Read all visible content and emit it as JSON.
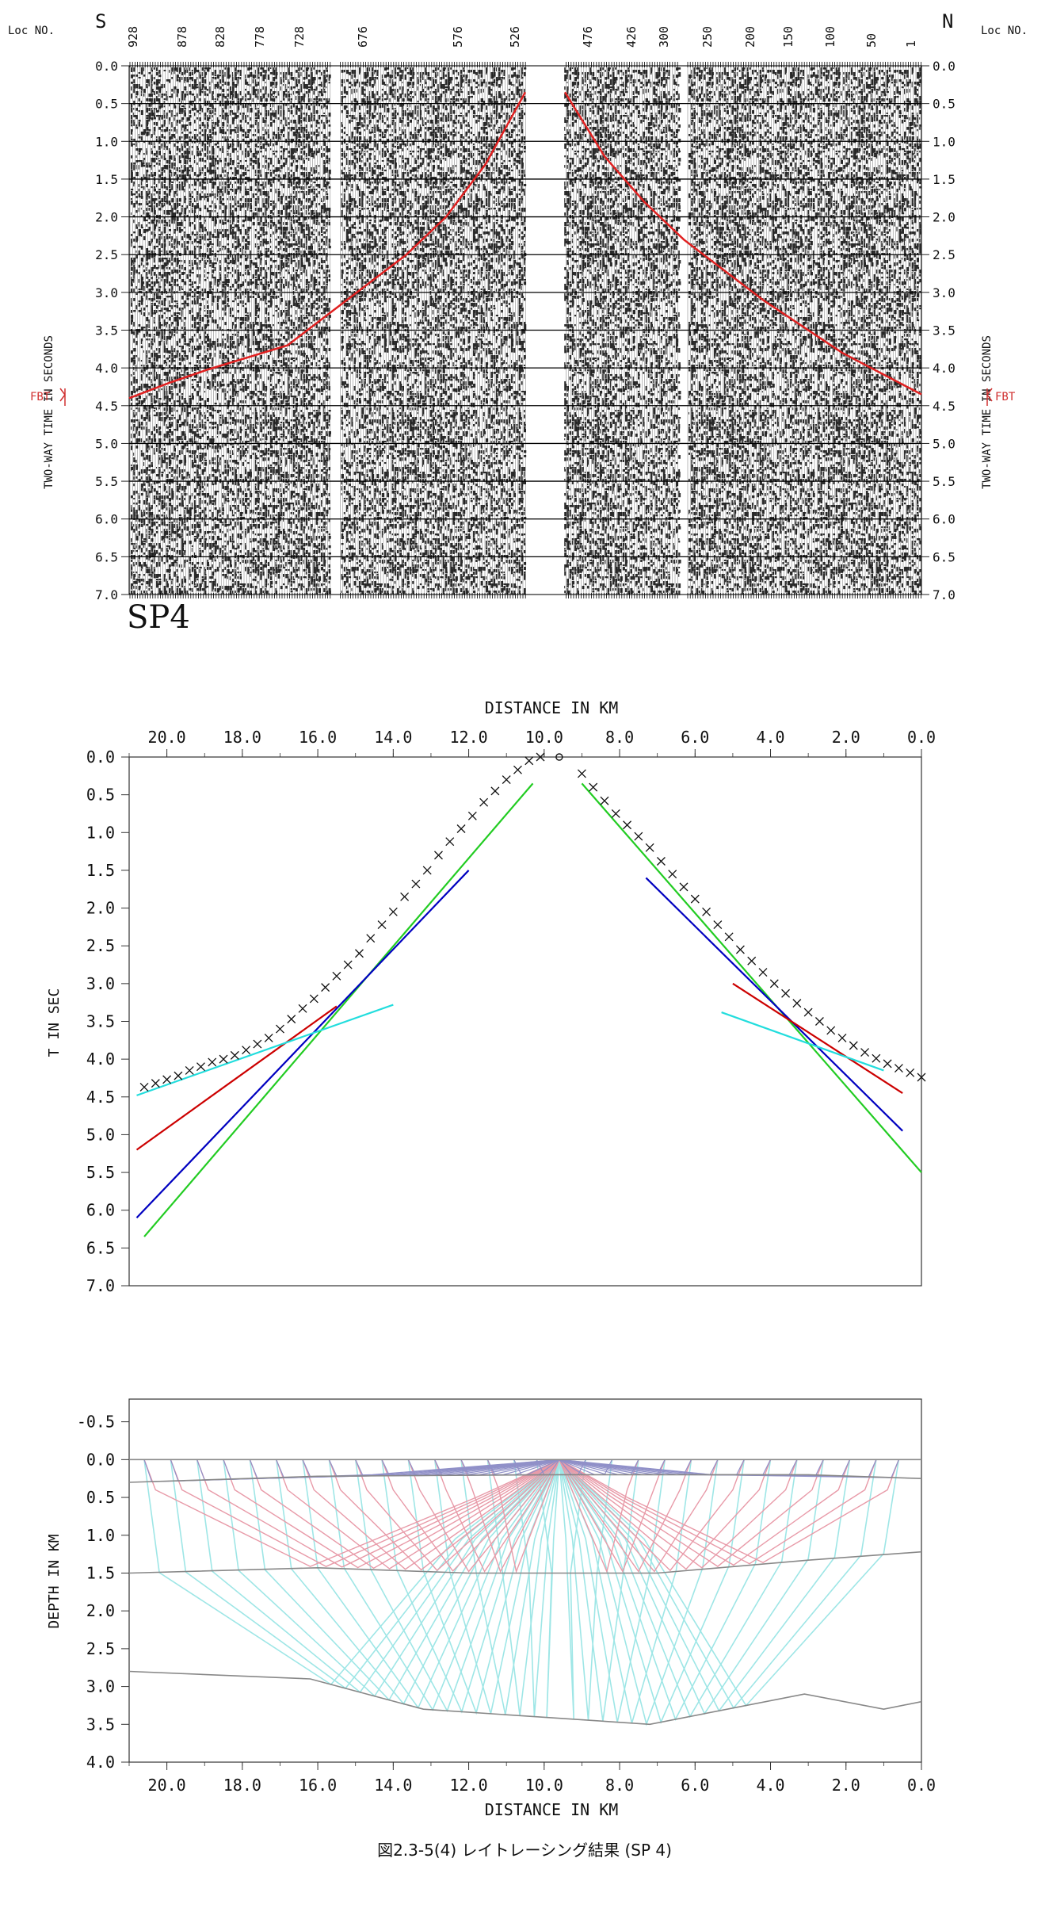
{
  "caption": "図2.3-5(4) レイトレーシング結果 (SP 4)",
  "colors": {
    "pick_line": "#e02020",
    "trace_ink": "#000000",
    "green": "#22cc22",
    "blue": "#0000c0",
    "red": "#cc0000",
    "cyan": "#22dddd",
    "ray_red": "#e89aa8",
    "ray_cyan": "#9ee6e6",
    "ray_purple": "#9090c8",
    "boundary": "#888888",
    "axis": "#333333"
  },
  "chart_data": [
    {
      "type": "seismic_record",
      "shot_label": "SP4",
      "left_direction": "S",
      "right_direction": "N",
      "loc_label_left": "Loc NO.",
      "loc_label_right": "Loc NO.",
      "loc_ticks": [
        "928",
        "878",
        "828",
        "778",
        "728",
        "676",
        "576",
        "526",
        "476",
        "426",
        "300",
        "250",
        "200",
        "150",
        "100",
        "50",
        "1"
      ],
      "ylabel_left": "TWO-WAY TIME IN SECONDS",
      "ylabel_right": "TWO-WAY TIME IN SECONDS",
      "marker_left": "FBT",
      "marker_right": "FBT",
      "y_ticks": [
        "0.0",
        "0.5",
        "1.0",
        "1.5",
        "2.0",
        "2.5",
        "3.0",
        "3.5",
        "4.0",
        "4.5",
        "5.0",
        "5.5",
        "6.0",
        "6.5",
        "7.0"
      ],
      "ylim": [
        0,
        7
      ],
      "first_break_pick": {
        "x": [
          0,
          0.05,
          0.1,
          0.2,
          0.25,
          0.3,
          0.35,
          0.4,
          0.45,
          0.5,
          0.52,
          0.55,
          0.6,
          0.65,
          0.7,
          0.8,
          0.9,
          1.0
        ],
        "y": [
          4.4,
          4.2,
          4.02,
          3.7,
          3.3,
          2.9,
          2.5,
          2.0,
          1.3,
          0.35,
          0.0,
          0.35,
          1.2,
          1.8,
          2.3,
          3.1,
          3.8,
          4.35
        ]
      }
    },
    {
      "type": "scatter",
      "xlabel": "DISTANCE IN KM",
      "ylabel": "T IN SEC",
      "xlim": [
        21,
        0
      ],
      "ylim": [
        7,
        0
      ],
      "x_ticks": [
        "20.0",
        "18.0",
        "16.0",
        "14.0",
        "12.0",
        "10.0",
        "8.0",
        "6.0",
        "4.0",
        "2.0",
        "0.0"
      ],
      "y_ticks": [
        "0.0",
        "0.5",
        "1.0",
        "1.5",
        "2.0",
        "2.5",
        "3.0",
        "3.5",
        "4.0",
        "4.5",
        "5.0",
        "5.5",
        "6.0",
        "6.5",
        "7.0"
      ],
      "shot_x": 9.6,
      "observed": {
        "x": [
          20.6,
          20.3,
          20.0,
          19.7,
          19.4,
          19.1,
          18.8,
          18.5,
          18.2,
          17.9,
          17.6,
          17.3,
          17.0,
          16.7,
          16.4,
          16.1,
          15.8,
          15.5,
          15.2,
          14.9,
          14.6,
          14.3,
          14.0,
          13.7,
          13.4,
          13.1,
          12.8,
          12.5,
          12.2,
          11.9,
          11.6,
          11.3,
          11.0,
          10.7,
          10.4,
          10.1,
          9.0,
          8.7,
          8.4,
          8.1,
          7.8,
          7.5,
          7.2,
          6.9,
          6.6,
          6.3,
          6.0,
          5.7,
          5.4,
          5.1,
          4.8,
          4.5,
          4.2,
          3.9,
          3.6,
          3.3,
          3.0,
          2.7,
          2.4,
          2.1,
          1.8,
          1.5,
          1.2,
          0.9,
          0.6,
          0.3,
          0.0
        ],
        "y": [
          4.37,
          4.32,
          4.27,
          4.22,
          4.15,
          4.1,
          4.04,
          4.0,
          3.95,
          3.88,
          3.8,
          3.72,
          3.6,
          3.47,
          3.33,
          3.2,
          3.05,
          2.9,
          2.75,
          2.6,
          2.4,
          2.22,
          2.05,
          1.85,
          1.68,
          1.5,
          1.3,
          1.12,
          0.95,
          0.78,
          0.6,
          0.45,
          0.3,
          0.17,
          0.05,
          0.0,
          0.22,
          0.4,
          0.58,
          0.75,
          0.9,
          1.05,
          1.2,
          1.38,
          1.55,
          1.72,
          1.88,
          2.05,
          2.22,
          2.38,
          2.55,
          2.7,
          2.85,
          3.0,
          3.13,
          3.26,
          3.38,
          3.5,
          3.62,
          3.72,
          3.82,
          3.91,
          3.99,
          4.06,
          4.12,
          4.18,
          4.24
        ]
      },
      "series": [
        {
          "color": "green",
          "lines": [
            {
              "x": [
                20.6,
                10.3
              ],
              "y": [
                6.35,
                0.35
              ]
            },
            {
              "x": [
                9.0,
                0.0
              ],
              "y": [
                0.35,
                5.5
              ]
            }
          ]
        },
        {
          "color": "blue",
          "lines": [
            {
              "x": [
                20.8,
                12.0
              ],
              "y": [
                6.1,
                1.5
              ]
            },
            {
              "x": [
                7.3,
                0.5
              ],
              "y": [
                1.6,
                4.95
              ]
            }
          ]
        },
        {
          "color": "red",
          "lines": [
            {
              "x": [
                20.8,
                15.5
              ],
              "y": [
                5.2,
                3.3
              ]
            },
            {
              "x": [
                5.0,
                0.5
              ],
              "y": [
                3.0,
                4.45
              ]
            }
          ]
        },
        {
          "color": "cyan",
          "lines": [
            {
              "x": [
                20.8,
                14.0
              ],
              "y": [
                4.48,
                3.28
              ]
            },
            {
              "x": [
                5.3,
                1.0
              ],
              "y": [
                3.38,
                4.15
              ]
            }
          ]
        }
      ]
    },
    {
      "type": "ray_diagram",
      "xlabel": "DISTANCE IN KM",
      "ylabel": "DEPTH IN KM",
      "xlim": [
        21,
        0
      ],
      "ylim": [
        4,
        -0.8
      ],
      "x_ticks": [
        "20.0",
        "18.0",
        "16.0",
        "14.0",
        "12.0",
        "10.0",
        "8.0",
        "6.0",
        "4.0",
        "2.0",
        "0.0"
      ],
      "y_ticks": [
        "-0.5",
        "0.0",
        "0.5",
        "1.0",
        "1.5",
        "2.0",
        "2.5",
        "3.0",
        "3.5",
        "4.0"
      ],
      "shot_x": 9.6,
      "boundaries": [
        {
          "x": [
            21,
            0
          ],
          "y": [
            0.0,
            0.0
          ]
        },
        {
          "x": [
            21,
            16.0,
            9.6,
            3.0,
            0
          ],
          "y": [
            0.3,
            0.22,
            0.2,
            0.2,
            0.25
          ]
        },
        {
          "x": [
            21,
            16.0,
            12.0,
            7.0,
            3.0,
            0
          ],
          "y": [
            1.5,
            1.43,
            1.5,
            1.5,
            1.33,
            1.22
          ]
        },
        {
          "x": [
            21,
            16.2,
            13.2,
            7.2,
            3.1,
            1.0,
            0
          ],
          "y": [
            2.8,
            2.9,
            3.3,
            3.5,
            3.1,
            3.3,
            3.2
          ]
        }
      ],
      "receivers_left": [
        20.6,
        19.9,
        19.2,
        18.5,
        17.8,
        17.1,
        16.4,
        15.7,
        15.0,
        14.3,
        13.6,
        12.9,
        12.2,
        11.5,
        10.8,
        10.2
      ],
      "receivers_right": [
        8.9,
        8.2,
        7.5,
        6.8,
        6.1,
        5.4,
        4.7,
        4.0,
        3.3,
        2.6,
        1.9,
        1.2,
        0.6
      ]
    }
  ]
}
